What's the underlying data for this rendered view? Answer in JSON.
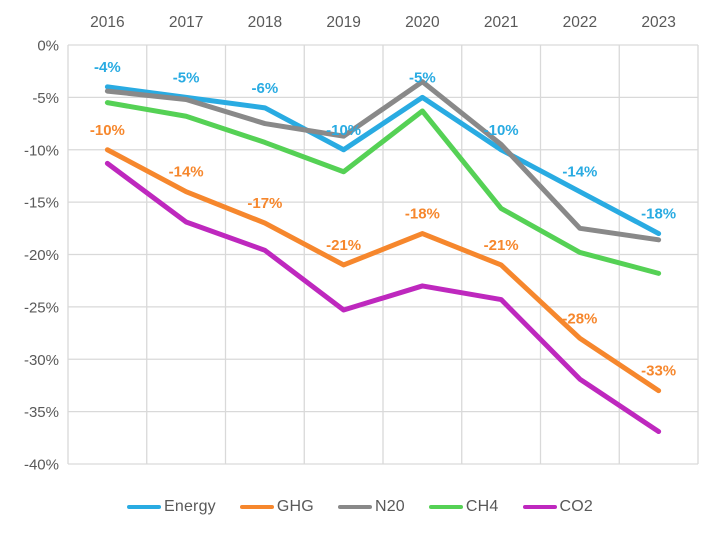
{
  "chart_data": {
    "type": "line",
    "title": "",
    "x_categories": [
      "2016",
      "2017",
      "2018",
      "2019",
      "2020",
      "2021",
      "2022",
      "2023"
    ],
    "y_axis": {
      "min": -40,
      "max": 0,
      "step": 5,
      "tick_labels": [
        "0%",
        "-5%",
        "-10%",
        "-15%",
        "-20%",
        "-25%",
        "-30%",
        "-35%",
        "-40%"
      ],
      "unit": "%"
    },
    "grid": true,
    "legend_position": "bottom",
    "colors": {
      "axis_text": "#595959",
      "gridline": "#D9D9D9",
      "legend_text": "#595959",
      "background": "#FFFFFF"
    },
    "series": [
      {
        "name": "Energy",
        "color": "#29ABE2",
        "values": [
          -4,
          -5,
          -6,
          -10,
          -5,
          -10,
          -14,
          -18
        ],
        "data_labels": [
          "-4%",
          "-5%",
          "-6%",
          "-10%",
          "-5%",
          "-10%",
          "-14%",
          "-18%"
        ]
      },
      {
        "name": "GHG",
        "color": "#F6872D",
        "values": [
          -10,
          -14,
          -17,
          -21,
          -18,
          -21,
          -28,
          -33
        ],
        "data_labels": [
          "-10%",
          "-14%",
          "-17%",
          "-21%",
          "-18%",
          "-21%",
          "-28%",
          "-33%"
        ]
      },
      {
        "name": "N20",
        "color": "#898989",
        "values": [
          -4.4,
          -5.2,
          -7.5,
          -8.7,
          -3.5,
          -9.5,
          -17.5,
          -18.6
        ],
        "data_labels": null
      },
      {
        "name": "CH4",
        "color": "#55D155",
        "values": [
          -5.5,
          -6.8,
          -9.3,
          -12.1,
          -6.3,
          -15.6,
          -19.8,
          -21.8
        ],
        "data_labels": null
      },
      {
        "name": "CO2",
        "color": "#BE28BE",
        "values": [
          -11.3,
          -16.9,
          -19.6,
          -25.3,
          -23.0,
          -24.3,
          -31.9,
          -36.9
        ],
        "data_labels": null
      }
    ]
  }
}
